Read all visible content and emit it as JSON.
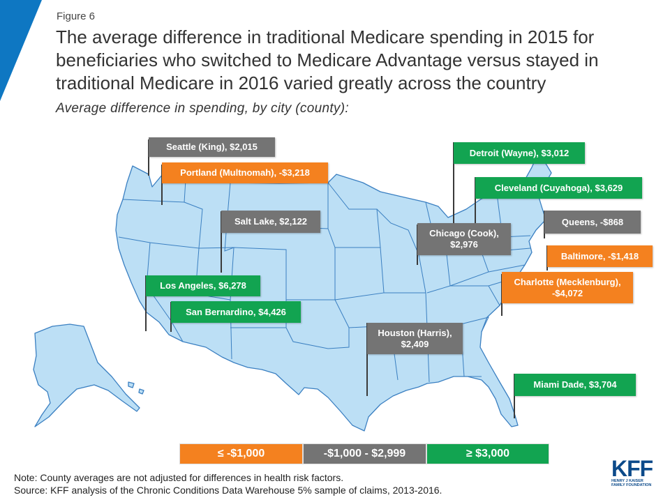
{
  "header": {
    "figure_label": "Figure 6",
    "title": "The average difference in traditional Medicare spending in 2015 for beneficiaries who switched to Medicare Advantage versus stayed in traditional Medicare in 2016 varied greatly across the country",
    "subtitle": "Average difference in spending, by city (county):"
  },
  "colors": {
    "map_fill": "#bcdff5",
    "map_stroke": "#3a7fc1",
    "negative_large": "#f4811f",
    "middle": "#747474",
    "positive_large": "#12a451",
    "accent_corner": "#0e77c2"
  },
  "flags": {
    "seattle": "Seattle (King),  $2,015",
    "portland": "Portland (Multnomah),  -$3,218",
    "salt_lake": "Salt Lake, $2,122",
    "los_angeles": "Los Angeles, $6,278",
    "san_bernardino": "San Bernardino, $4,426",
    "detroit": "Detroit (Wayne), $3,012",
    "cleveland": "Cleveland (Cuyahoga), $3,629",
    "chicago_1": "Chicago (Cook),",
    "chicago_2": "$2,976",
    "queens": "Queens, -$868",
    "baltimore": "Baltimore, -$1,418",
    "charlotte_1": "Charlotte (Mecklenburg),",
    "charlotte_2": "-$4,072",
    "houston_1": "Houston (Harris),",
    "houston_2": "$2,409",
    "miami": "Miami Dade, $3,704"
  },
  "legend": {
    "low": "≤ -$1,000",
    "mid": "-$1,000 - $2,999",
    "high": "≥ $3,000"
  },
  "notes": {
    "note": "Note: County averages are not adjusted for differences in health risk factors.",
    "source": "Source: KFF analysis of the Chronic Conditions Data Warehouse 5% sample of claims, 2013-2016."
  },
  "logo": {
    "name": "KFF",
    "line1": "HENRY J KAISER",
    "line2": "FAMILY FOUNDATION"
  }
}
